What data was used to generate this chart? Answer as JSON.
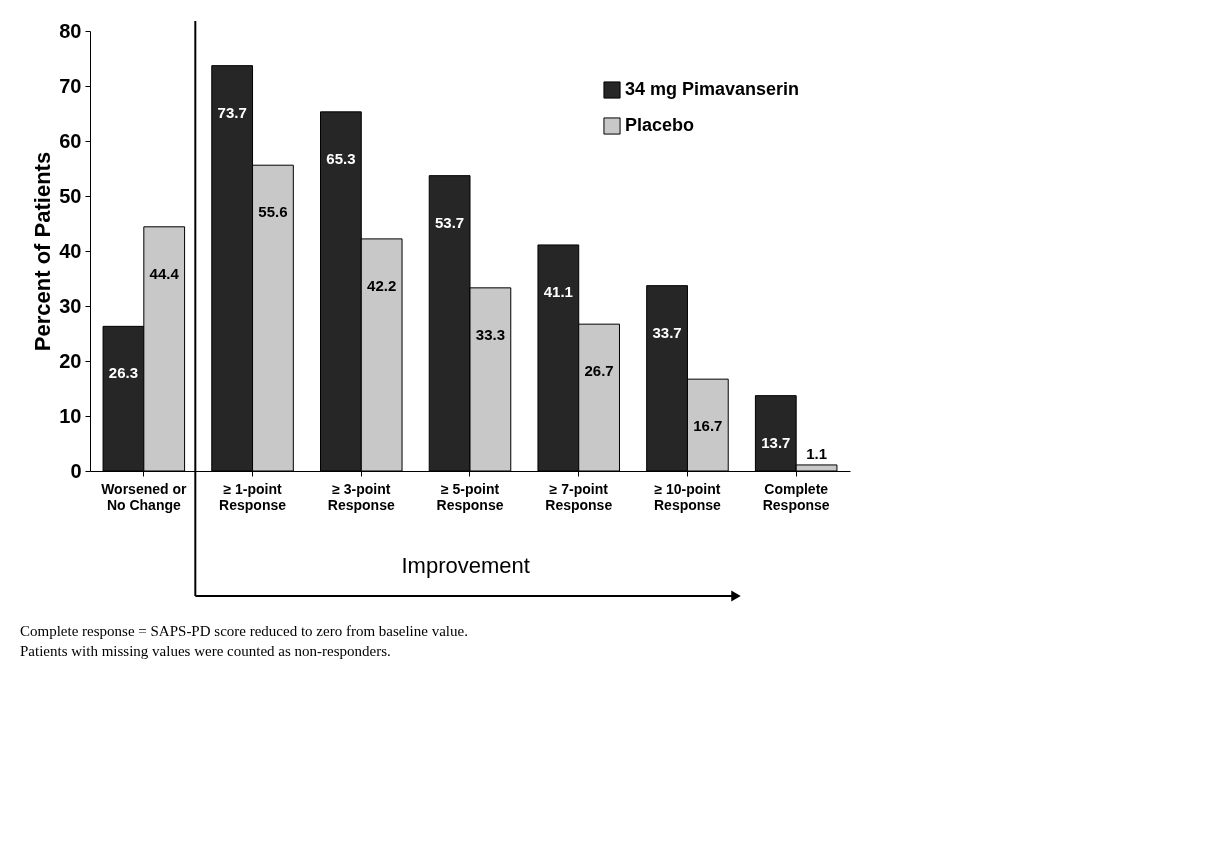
{
  "chart_data": {
    "type": "bar",
    "ylabel": "Percent of Patients",
    "categories": [
      "Worsened or\nNo Change",
      "≥ 1-point\nResponse",
      "≥ 3-point\nResponse",
      "≥ 5-point\nResponse",
      "≥ 7-point\nResponse",
      "≥ 10-point\nResponse",
      "Complete\nResponse"
    ],
    "series": [
      {
        "name": "34 mg Pimavanserin",
        "color": "#262626",
        "values": [
          26.3,
          73.7,
          65.3,
          53.7,
          41.1,
          33.7,
          13.7
        ]
      },
      {
        "name": "Placebo",
        "color": "#c8c8c8",
        "values": [
          44.4,
          55.6,
          42.2,
          33.3,
          26.7,
          16.7,
          1.1
        ]
      }
    ],
    "ylim": [
      0,
      80
    ],
    "yticks": [
      0,
      10,
      20,
      30,
      40,
      50,
      60,
      70,
      80
    ],
    "data_labels": true,
    "legend": "top right",
    "grid": false,
    "annotations": [
      "Improvement",
      "Complete response = SAPS-PD score reduced to zero from baseline value.",
      "Patients with missing values were counted as non-responders."
    ]
  }
}
